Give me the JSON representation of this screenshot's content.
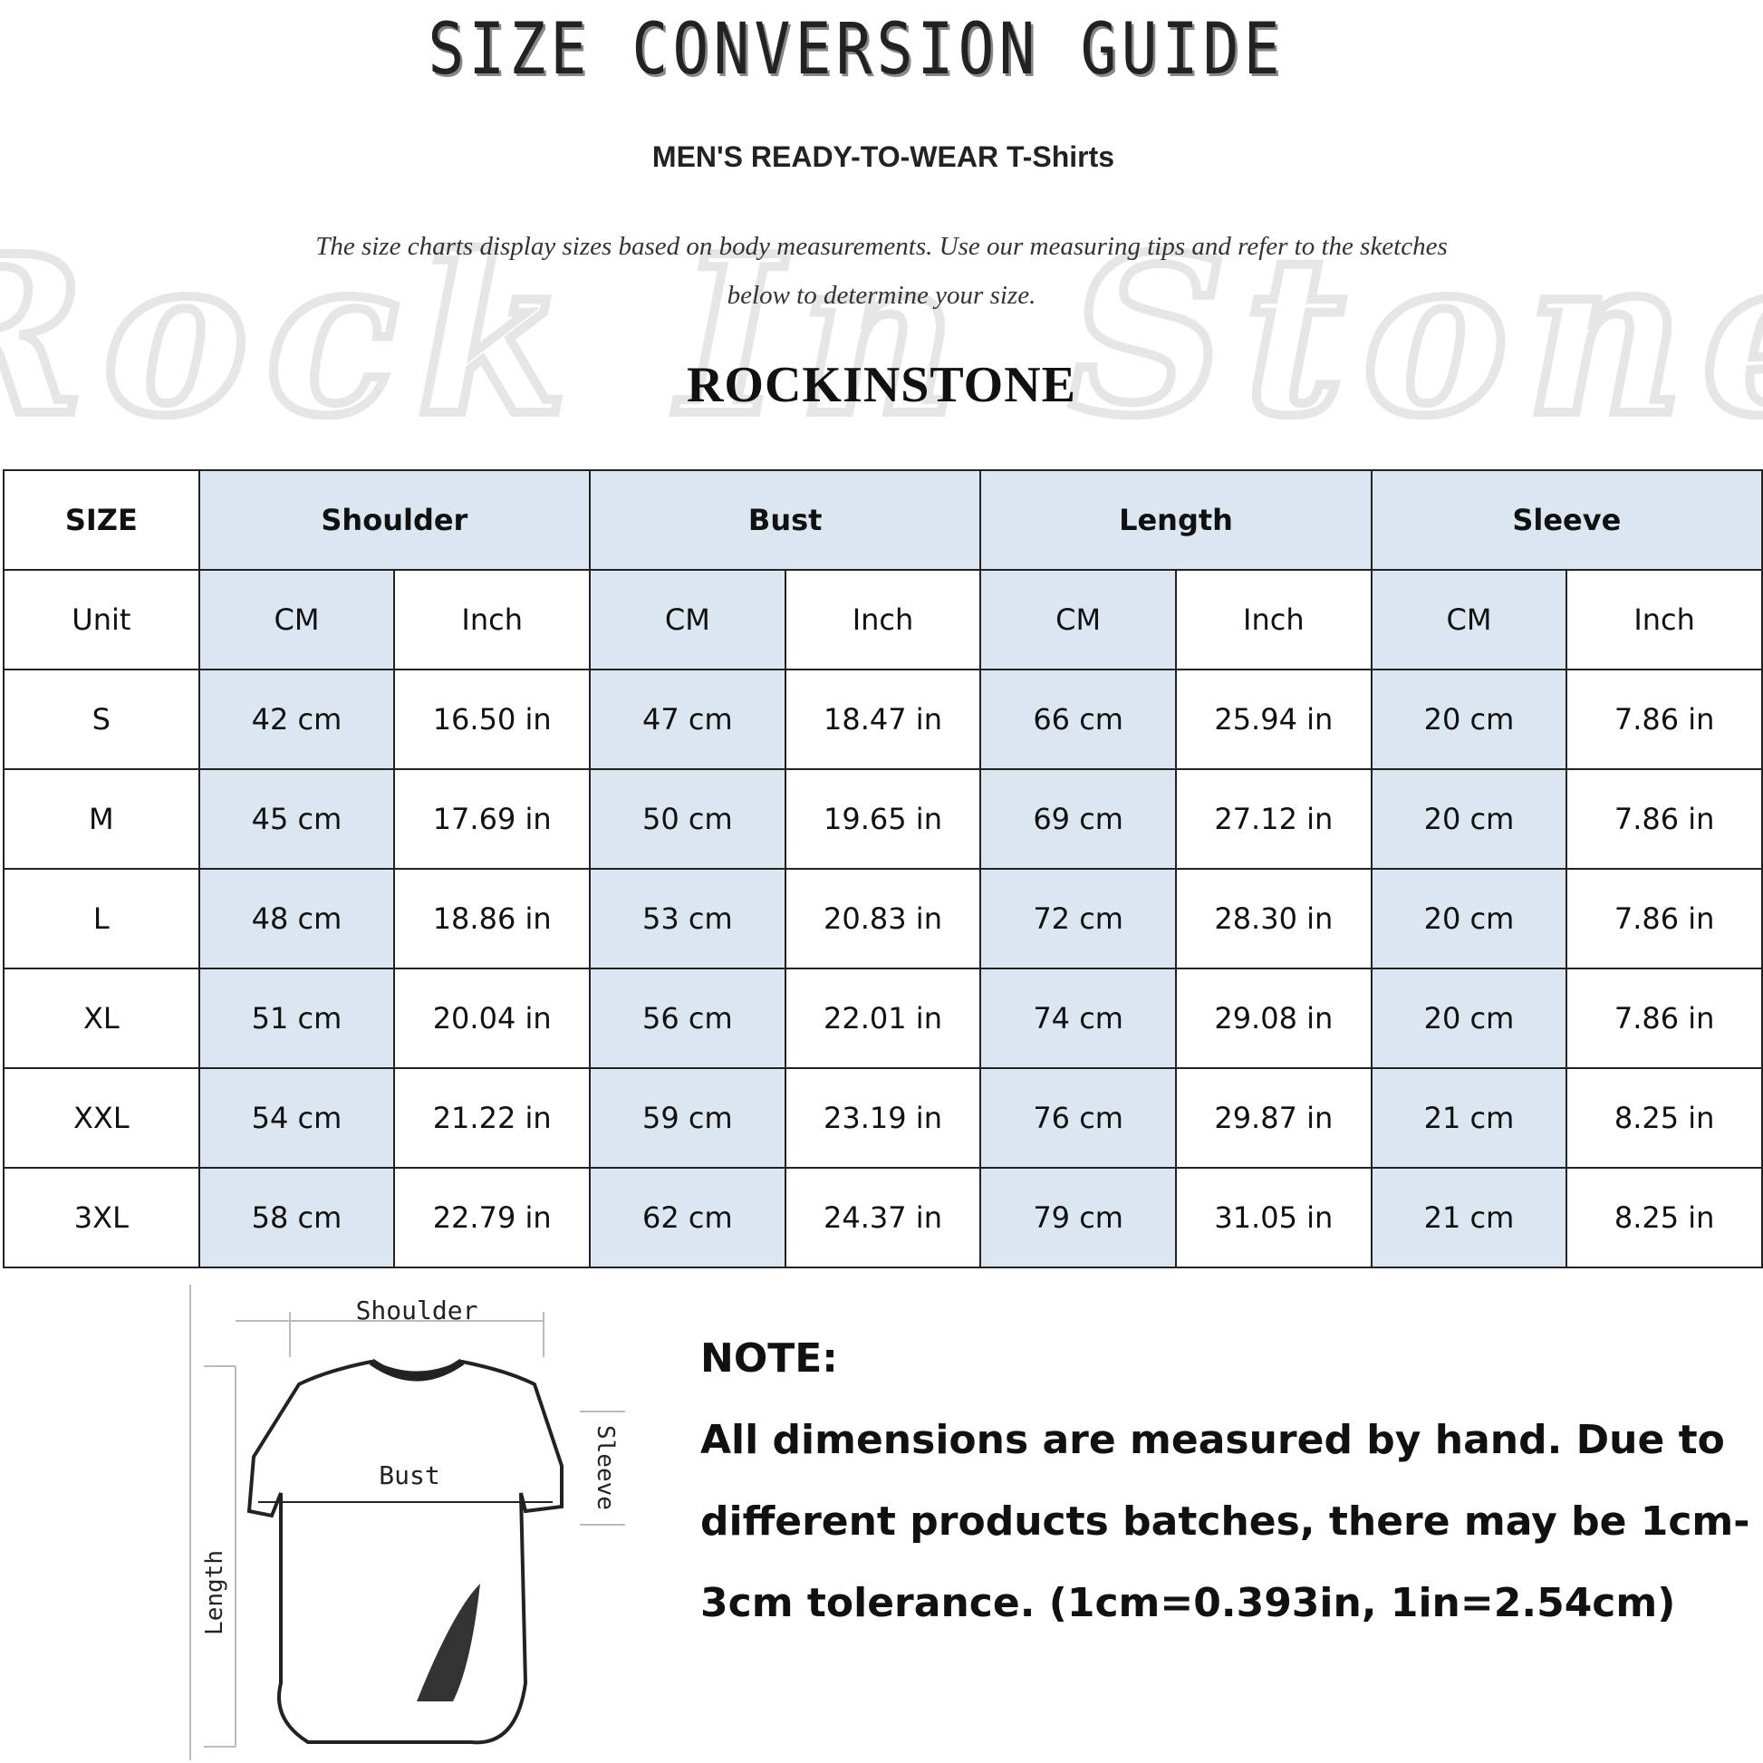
{
  "header": {
    "title": "SIZE CONVERSION GUIDE",
    "subtitle": "MEN'S READY-TO-WEAR T-Shirts",
    "intro_line1": "The size charts display sizes based on body measurements. Use our measuring tips and refer to the sketches",
    "intro_line2": "below to determine your size.",
    "brand": "ROCKINSTONE",
    "watermark": "Rock In Stone"
  },
  "table": {
    "header_row": [
      "SIZE",
      "Shoulder",
      "Bust",
      "Length",
      "Sleeve"
    ],
    "unit_row": [
      "Unit",
      "CM",
      "Inch",
      "CM",
      "Inch",
      "CM",
      "Inch",
      "CM",
      "Inch"
    ],
    "rows": [
      [
        "S",
        "42 cm",
        "16.50 in",
        "47 cm",
        "18.47  in",
        "66 cm",
        "25.94  in",
        "20 cm",
        "7.86  in"
      ],
      [
        "M",
        "45 cm",
        "17.69  in",
        "50 cm",
        "19.65  in",
        "69 cm",
        "27.12  in",
        "20 cm",
        "7.86  in"
      ],
      [
        "L",
        "48 cm",
        "18.86  in",
        "53 cm",
        "20.83  in",
        "72 cm",
        "28.30  in",
        "20 cm",
        "7.86  in"
      ],
      [
        "XL",
        "51 cm",
        "20.04  in",
        "56 cm",
        "22.01  in",
        "74 cm",
        "29.08  in",
        "20 cm",
        "7.86  in"
      ],
      [
        "XXL",
        "54 cm",
        "21.22  in",
        "59 cm",
        "23.19  in",
        "76 cm",
        "29.87  in",
        "21 cm",
        "8.25  in"
      ],
      [
        "3XL",
        "58 cm",
        "22.79  in",
        "62 cm",
        "24.37  in",
        "79 cm",
        "31.05  in",
        "21 cm",
        "8.25  in"
      ]
    ],
    "highlight_color": "#dce6f1"
  },
  "sketch": {
    "shoulder": "Shoulder",
    "bust": "Bust",
    "sleeve": "Sleeve",
    "length": "Length"
  },
  "note": {
    "heading": "NOTE:",
    "body": "All dimensions are measured by hand. Due to different products batches, there may be 1cm-3cm tolerance. (1cm=0.393in, 1in=2.54cm)"
  }
}
